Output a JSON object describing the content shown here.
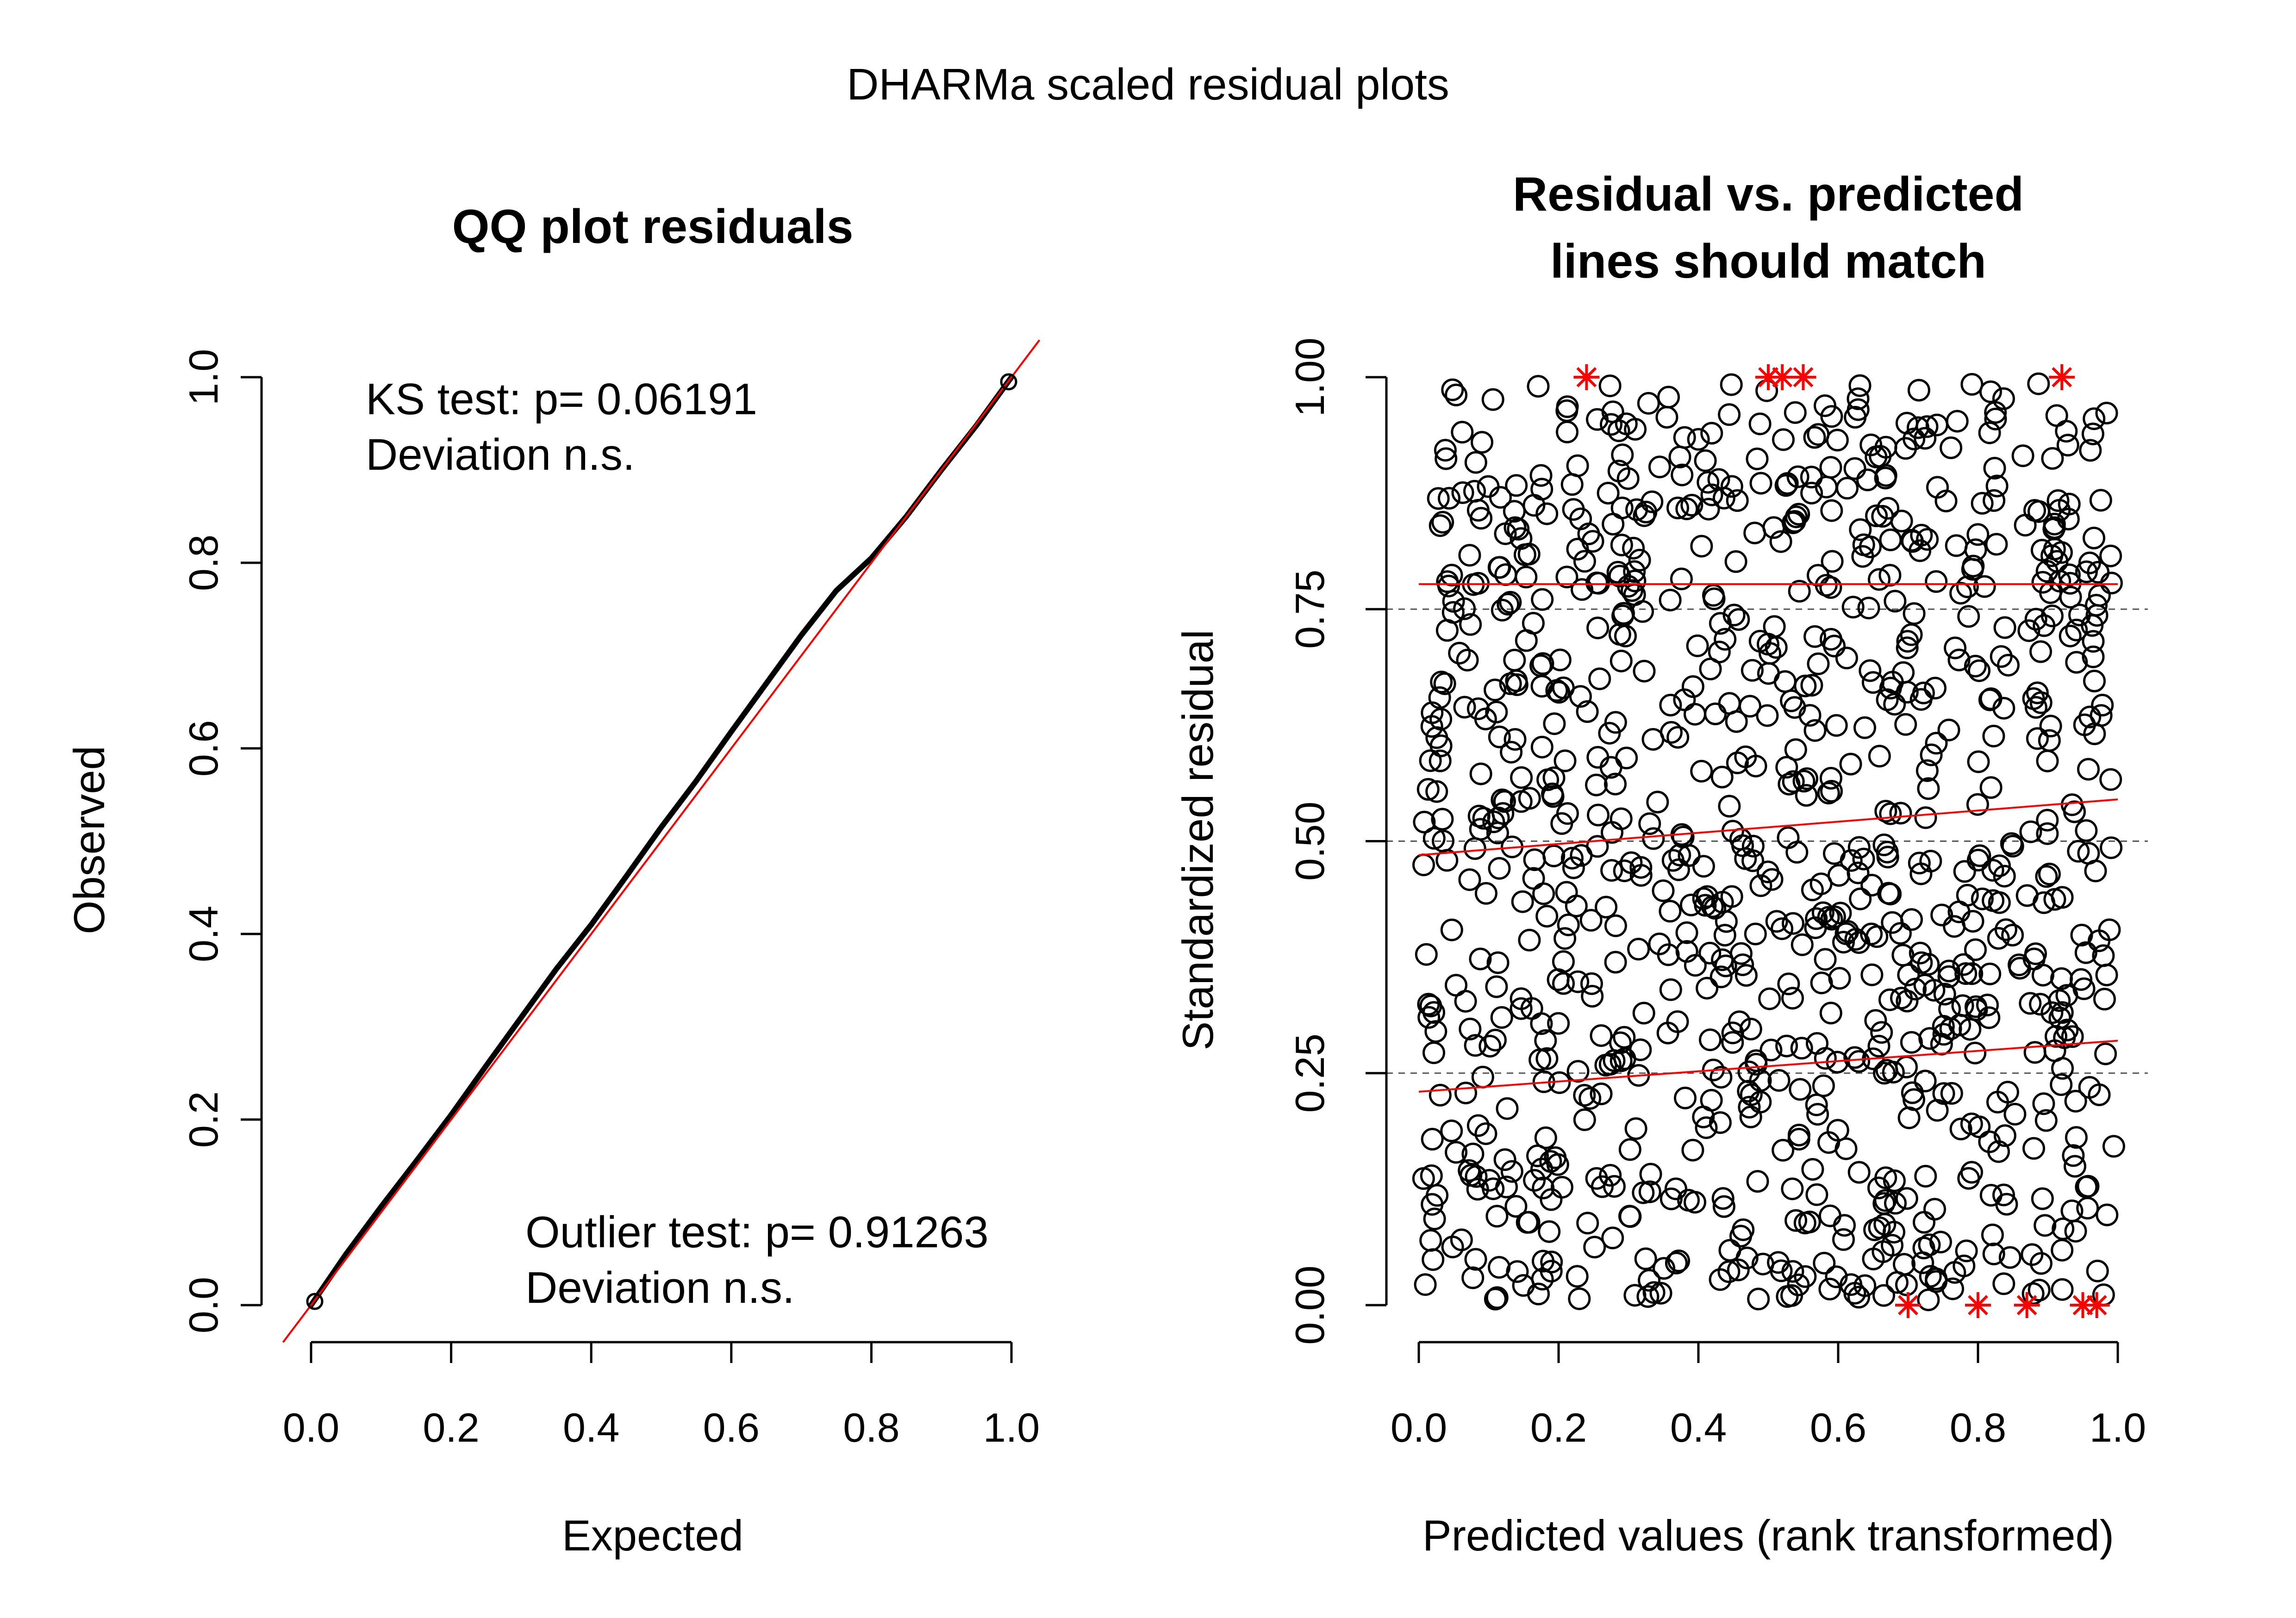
{
  "title": "DHARMa scaled residual plots",
  "chart_data": [
    {
      "type": "scatter",
      "title": "QQ plot residuals",
      "xlabel": "Expected",
      "ylabel": "Observed",
      "xlim": [
        0,
        1
      ],
      "ylim": [
        0,
        1
      ],
      "x_ticks": [
        "0.0",
        "0.2",
        "0.4",
        "0.6",
        "0.8",
        "1.0"
      ],
      "y_ticks": [
        "0.0",
        "0.2",
        "0.4",
        "0.6",
        "0.8",
        "1.0"
      ],
      "x_tick_values": [
        0,
        0.2,
        0.4,
        0.6,
        0.8,
        1.0
      ],
      "y_tick_values": [
        0,
        0.2,
        0.4,
        0.6,
        0.8,
        1.0
      ],
      "reference_line": {
        "slope": 1,
        "intercept": 0,
        "color": "#ff0000"
      },
      "quantiles": [
        [
          0.0,
          0.0
        ],
        [
          0.05,
          0.055
        ],
        [
          0.1,
          0.106
        ],
        [
          0.15,
          0.155
        ],
        [
          0.2,
          0.205
        ],
        [
          0.25,
          0.258
        ],
        [
          0.3,
          0.31
        ],
        [
          0.35,
          0.362
        ],
        [
          0.4,
          0.41
        ],
        [
          0.45,
          0.462
        ],
        [
          0.5,
          0.515
        ],
        [
          0.55,
          0.565
        ],
        [
          0.6,
          0.618
        ],
        [
          0.65,
          0.67
        ],
        [
          0.7,
          0.722
        ],
        [
          0.75,
          0.77
        ],
        [
          0.8,
          0.805
        ],
        [
          0.85,
          0.85
        ],
        [
          0.9,
          0.9
        ],
        [
          0.95,
          0.948
        ],
        [
          1.0,
          1.0
        ]
      ],
      "annotations": {
        "ks_line1": "KS test: p= 0.06191",
        "ks_line2": "Deviation  n.s.",
        "outlier_line1": "Outlier test: p= 0.91263",
        "outlier_line2": "Deviation  n.s."
      }
    },
    {
      "type": "scatter",
      "title_line1": "Residual vs. predicted",
      "title_line2": "lines should match",
      "xlabel": "Predicted values (rank transformed)",
      "ylabel": "Standardized residual",
      "xlim": [
        0,
        1
      ],
      "ylim": [
        0,
        1
      ],
      "x_ticks": [
        "0.0",
        "0.2",
        "0.4",
        "0.6",
        "0.8",
        "1.0"
      ],
      "y_ticks": [
        "0.00",
        "0.25",
        "0.50",
        "0.75",
        "1.00"
      ],
      "x_tick_values": [
        0,
        0.2,
        0.4,
        0.6,
        0.8,
        1.0
      ],
      "y_tick_values": [
        0,
        0.25,
        0.5,
        0.75,
        1.0
      ],
      "dashed_hlines": [
        0.25,
        0.5,
        0.75
      ],
      "quantile_lines": [
        {
          "q": 0.25,
          "x": [
            0,
            1
          ],
          "y": [
            0.23,
            0.285
          ],
          "color": "#ff0000"
        },
        {
          "q": 0.5,
          "x": [
            0,
            1
          ],
          "y": [
            0.485,
            0.545
          ],
          "color": "#ff0000"
        },
        {
          "q": 0.75,
          "x": [
            0,
            1
          ],
          "y": [
            0.777,
            0.777
          ],
          "color": "#ff0000"
        }
      ],
      "n_points": 1000,
      "outliers_top_x": [
        0.24,
        0.5,
        0.52,
        0.55,
        0.92
      ],
      "outliers_bottom_x": [
        0.7,
        0.8,
        0.87,
        0.95,
        0.97
      ],
      "outlier_color": "#ff0000"
    }
  ]
}
